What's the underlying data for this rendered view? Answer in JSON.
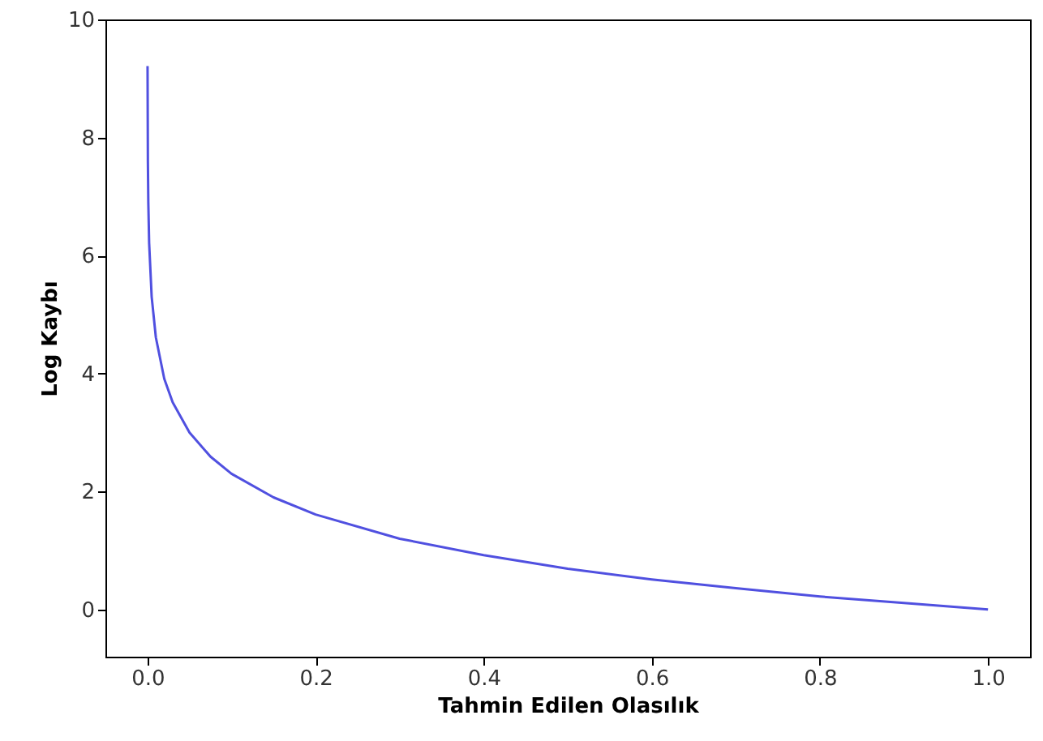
{
  "chart_data": {
    "type": "line",
    "xlabel": "Tahmin Edilen Olasılık",
    "ylabel": "Log Kaybı",
    "xlim": [
      -0.05,
      1.05
    ],
    "xticks": [
      {
        "value": 0,
        "label": "0.0"
      },
      0.2,
      0.4,
      0.6,
      0.8,
      {
        "value": 1,
        "label": "1.0"
      }
    ],
    "ylim": [
      -0.8,
      10
    ],
    "yticks": [
      0,
      2,
      4,
      6,
      8,
      10
    ],
    "grid": false,
    "marker": "none",
    "line_style": "solid",
    "series": [
      {
        "color": "#5050e0",
        "x": [
          0.0001,
          0.0005,
          0.001,
          0.002,
          0.005,
          0.01,
          0.02,
          0.03,
          0.05,
          0.075,
          0.1,
          0.15,
          0.2,
          0.3,
          0.4,
          0.5,
          0.6,
          0.7,
          0.8,
          0.9,
          1.0
        ],
        "values": [
          9.21,
          7.6,
          6.91,
          6.21,
          5.3,
          4.61,
          3.91,
          3.51,
          3.0,
          2.59,
          2.3,
          1.9,
          1.61,
          1.2,
          0.92,
          0.69,
          0.51,
          0.36,
          0.22,
          0.11,
          0
        ]
      }
    ]
  }
}
